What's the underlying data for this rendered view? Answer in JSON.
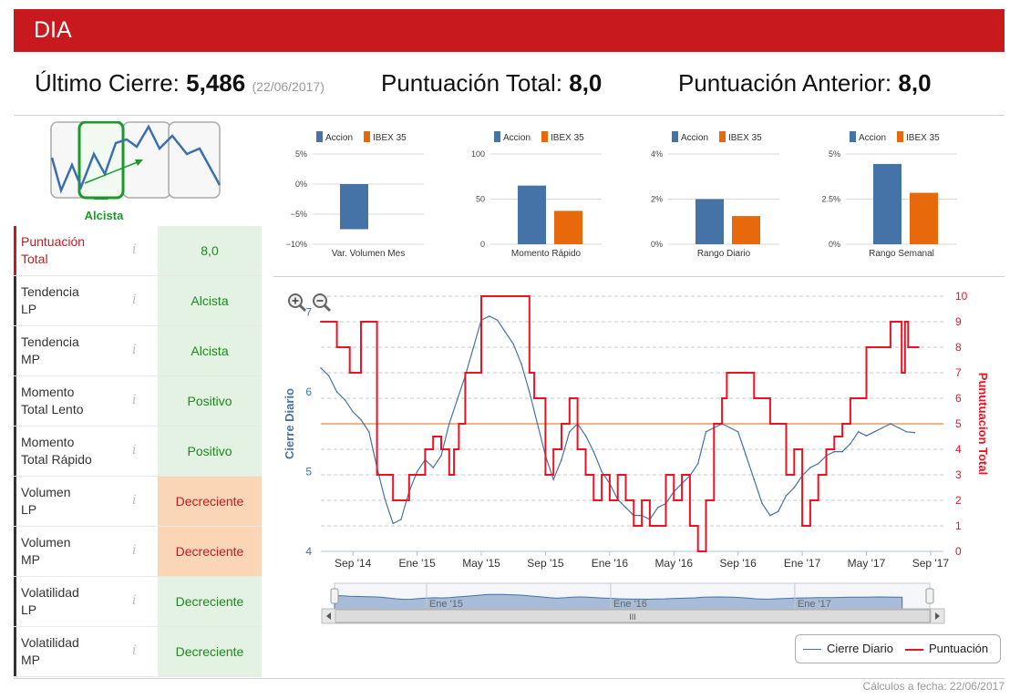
{
  "header": {
    "ticker": "DIA"
  },
  "kpis": {
    "last_close_label": "Último Cierre:",
    "last_close_value": "5,486",
    "last_close_date": "(22/06/2017)",
    "total_score_label": "Puntuación Total:",
    "total_score_value": "8,0",
    "prev_score_label": "Puntuación Anterior:",
    "prev_score_value": "8,0"
  },
  "trend": {
    "label": "Alcista"
  },
  "indicators": [
    {
      "label_line1": "Puntuación",
      "label_line2": "Total",
      "value": "8,0",
      "status": "green",
      "highlight": true
    },
    {
      "label_line1": "Tendencia",
      "label_line2": "LP",
      "value": "Alcista",
      "status": "green",
      "highlight": false
    },
    {
      "label_line1": "Tendencia",
      "label_line2": "MP",
      "value": "Alcista",
      "status": "green",
      "highlight": false
    },
    {
      "label_line1": "Momento",
      "label_line2": "Total Lento",
      "value": "Positivo",
      "status": "green",
      "highlight": false
    },
    {
      "label_line1": "Momento",
      "label_line2": "Total Rápido",
      "value": "Positivo",
      "status": "green",
      "highlight": false
    },
    {
      "label_line1": "Volumen",
      "label_line2": "LP",
      "value": "Decreciente",
      "status": "orange",
      "highlight": false
    },
    {
      "label_line1": "Volumen",
      "label_line2": "MP",
      "value": "Decreciente",
      "status": "orange",
      "highlight": false
    },
    {
      "label_line1": "Volatilidad",
      "label_line2": "LP",
      "value": "Decreciente",
      "status": "green",
      "highlight": false
    },
    {
      "label_line1": "Volatilidad",
      "label_line2": "MP",
      "value": "Decreciente",
      "status": "green",
      "highlight": false
    }
  ],
  "info_icon": "i",
  "colors": {
    "accion": "#4572a7",
    "ibex": "#e8690b",
    "score_line": "#ee1122",
    "close_line": "#4572a7",
    "header_red": "#c8191f",
    "avg_line": "#f4b183"
  },
  "chart_data": [
    {
      "type": "bar",
      "title": "Var. Volumen Mes",
      "legend": [
        "Accion",
        "IBEX 35"
      ],
      "ticks": [
        "5%",
        "0%",
        "−5%",
        "−10%"
      ],
      "tick_values": [
        5,
        0,
        -5,
        -10
      ],
      "ylim": [
        -10,
        5
      ],
      "series": [
        {
          "name": "Accion",
          "values": [
            -7.5
          ]
        }
      ]
    },
    {
      "type": "bar",
      "title": "Momento Rápido",
      "legend": [
        "Accion",
        "IBEX 35"
      ],
      "ticks": [
        "100",
        "50",
        "0"
      ],
      "tick_values": [
        100,
        50,
        0
      ],
      "ylim": [
        0,
        100
      ],
      "series": [
        {
          "name": "Accion",
          "values": [
            65
          ]
        },
        {
          "name": "IBEX 35",
          "values": [
            37
          ]
        }
      ]
    },
    {
      "type": "bar",
      "title": "Rango Diario",
      "legend": [
        "Accion",
        "IBEX 35"
      ],
      "ticks": [
        "4%",
        "2%",
        "0%"
      ],
      "tick_values": [
        4,
        2,
        0
      ],
      "ylim": [
        0,
        4
      ],
      "series": [
        {
          "name": "Accion",
          "values": [
            2.0
          ]
        },
        {
          "name": "IBEX 35",
          "values": [
            1.25
          ]
        }
      ]
    },
    {
      "type": "bar",
      "title": "Rango Semanal",
      "legend": [
        "Accion",
        "IBEX 35"
      ],
      "ticks": [
        "5%",
        "2.5%",
        "0%"
      ],
      "tick_values": [
        5,
        2.5,
        0
      ],
      "ylim": [
        0,
        5
      ],
      "series": [
        {
          "name": "Accion",
          "values": [
            4.45
          ]
        },
        {
          "name": "IBEX 35",
          "values": [
            2.85
          ]
        }
      ]
    },
    {
      "type": "line",
      "ylabel_left": "Cierre Diario",
      "ylabel_right": "Punutuacion Total",
      "ylim_left": [
        4,
        7.2
      ],
      "ylim_right": [
        0,
        10
      ],
      "left_ticks": [
        "7",
        "6",
        "5",
        "4"
      ],
      "left_tick_values": [
        7,
        6,
        5,
        4
      ],
      "right_ticks": [
        "10",
        "9",
        "8",
        "7",
        "6",
        "5",
        "4",
        "3",
        "2",
        "1",
        "0"
      ],
      "right_tick_values": [
        10,
        9,
        8,
        7,
        6,
        5,
        4,
        3,
        2,
        1,
        0
      ],
      "x_ticks": [
        "Sep '14",
        "Ene '15",
        "May '15",
        "Sep '15",
        "Ene '16",
        "May '16",
        "Sep '16",
        "Ene '17",
        "May '17",
        "Sep '17"
      ],
      "x_tick_months": [
        2,
        6,
        10,
        14,
        18,
        22,
        26,
        30,
        34,
        38
      ],
      "x_range_months": [
        0,
        38.8
      ],
      "avg_close": 5.6,
      "series": [
        {
          "name": "Cierre Diario",
          "x": [
            0,
            0.5,
            1,
            1.5,
            2,
            2.5,
            3,
            3.5,
            4,
            4.5,
            5,
            5.5,
            6,
            6.5,
            7,
            7.5,
            8,
            8.5,
            9,
            9.5,
            10,
            10.5,
            11,
            11.5,
            12,
            12.5,
            13,
            13.5,
            14,
            14.5,
            15,
            15.5,
            16,
            16.5,
            17,
            17.5,
            18,
            18.5,
            19,
            19.5,
            20,
            20.5,
            21,
            21.5,
            22,
            22.5,
            23,
            23.5,
            24,
            24.5,
            25,
            25.5,
            26,
            26.5,
            27,
            27.5,
            28,
            28.5,
            29,
            29.5,
            30,
            30.5,
            31,
            31.5,
            32,
            32.5,
            33,
            33.5,
            34,
            34.5,
            35,
            35.5,
            36,
            36.5,
            37
          ],
          "values": [
            6.3,
            6.2,
            6.0,
            5.9,
            5.75,
            5.65,
            5.5,
            5.05,
            4.65,
            4.35,
            4.4,
            4.75,
            5.0,
            5.15,
            5.05,
            5.2,
            5.6,
            5.9,
            6.2,
            6.55,
            6.9,
            6.95,
            6.9,
            6.75,
            6.6,
            6.35,
            6.0,
            5.6,
            5.2,
            4.9,
            5.15,
            5.5,
            5.6,
            5.45,
            5.25,
            5.0,
            4.85,
            4.65,
            4.55,
            4.45,
            4.45,
            4.4,
            4.55,
            4.6,
            4.75,
            4.85,
            4.95,
            5.1,
            5.5,
            5.55,
            5.6,
            5.55,
            5.5,
            5.2,
            4.9,
            4.6,
            4.45,
            4.5,
            4.7,
            4.8,
            4.95,
            5.05,
            5.1,
            5.2,
            5.25,
            5.25,
            5.35,
            5.5,
            5.45,
            5.5,
            5.55,
            5.6,
            5.55,
            5.5,
            5.49
          ]
        },
        {
          "name": "Puntuación",
          "x": [
            0,
            1,
            1.8,
            2.5,
            3.5,
            4.5,
            5,
            5.5,
            6,
            6.5,
            7,
            7.5,
            8,
            8.3,
            8.6,
            9,
            10,
            11,
            13,
            13.3,
            14,
            14.5,
            15,
            15.5,
            16,
            16.5,
            17,
            17.5,
            18,
            18.5,
            19,
            19.5,
            20,
            20.5,
            21,
            21.5,
            22,
            22.5,
            23,
            23.5,
            24,
            24.5,
            25,
            25.3,
            25.6,
            26,
            27,
            28,
            29,
            29.5,
            30,
            30.5,
            31,
            31.5,
            32,
            32.5,
            33,
            33.5,
            34,
            35,
            35.5,
            36,
            36.2,
            36.4,
            36.6,
            37
          ],
          "values": [
            9,
            8,
            7,
            9,
            3,
            2,
            2,
            3,
            3,
            4,
            4.5,
            4,
            3,
            4,
            5,
            7,
            10,
            10,
            7,
            6,
            3,
            4,
            5,
            6,
            4,
            3,
            2,
            3,
            2,
            3,
            2,
            1,
            2,
            1,
            1,
            3,
            2,
            3,
            1,
            0,
            2,
            5,
            6,
            7,
            7,
            7,
            6,
            5,
            3,
            4,
            1,
            2,
            3,
            4,
            4.5,
            5,
            6,
            6,
            8,
            8,
            9,
            9,
            7,
            9,
            8,
            8
          ]
        }
      ]
    }
  ],
  "navigator": {
    "ticks": [
      "Ene '15",
      "Ene '16",
      "Ene '17"
    ],
    "tick_months": [
      6,
      18,
      30
    ],
    "scroll_glyph": "III"
  },
  "legend": {
    "close": "Cierre Diario",
    "score": "Puntuación"
  },
  "footer": {
    "calc_date": "Cálculos a fecha: 22/06/2017"
  }
}
